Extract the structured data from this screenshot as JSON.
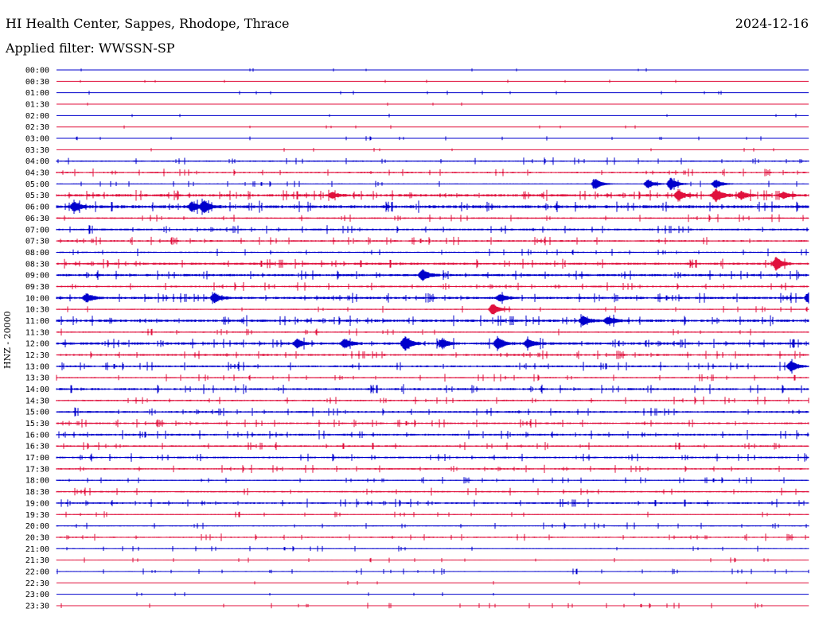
{
  "header": {
    "station": "HI Health Center, Sappes, Rhodope, Thrace",
    "date": "2024-12-16",
    "filter": "Applied filter: WWSSN-SP",
    "channel": "HNZ - 20000"
  },
  "colors": {
    "even_row": "#0000cc",
    "odd_row": "#e0103c",
    "background": "#ffffff",
    "text": "#000000"
  },
  "chart_data": {
    "type": "line",
    "title": "HI Health Center, Sappes, Rhodope, Thrace",
    "ylabel": "HNZ - 20000",
    "rows": [
      "00:00",
      "00:30",
      "01:00",
      "01:30",
      "02:00",
      "02:30",
      "03:00",
      "03:30",
      "04:00",
      "04:30",
      "05:00",
      "05:30",
      "06:00",
      "06:30",
      "07:00",
      "07:30",
      "08:00",
      "08:30",
      "09:00",
      "09:30",
      "10:00",
      "10:30",
      "11:00",
      "11:30",
      "12:00",
      "12:30",
      "13:00",
      "13:30",
      "14:00",
      "14:30",
      "15:00",
      "15:30",
      "16:00",
      "16:30",
      "17:00",
      "17:30",
      "18:00",
      "18:30",
      "19:00",
      "19:30",
      "20:00",
      "20:30",
      "21:00",
      "21:30",
      "22:00",
      "22:30",
      "23:00",
      "23:30"
    ],
    "row_minutes": 30,
    "noise_level": [
      0.0,
      0.0,
      0.1,
      0.0,
      0.0,
      0.0,
      0.2,
      0.1,
      0.7,
      0.8,
      0.5,
      1.3,
      1.5,
      0.8,
      1.0,
      0.9,
      0.7,
      1.1,
      1.2,
      0.9,
      1.2,
      0.6,
      1.3,
      0.7,
      1.3,
      1.0,
      1.0,
      0.7,
      1.1,
      0.8,
      1.0,
      0.9,
      1.0,
      0.8,
      0.9,
      0.8,
      0.6,
      0.8,
      0.9,
      0.5,
      0.6,
      0.7,
      0.4,
      0.3,
      0.5,
      0.1,
      0.1,
      0.4
    ],
    "events": [
      {
        "row": "05:00",
        "minute": 21.5,
        "amplitude": 7
      },
      {
        "row": "05:00",
        "minute": 23.6,
        "amplitude": 6
      },
      {
        "row": "05:00",
        "minute": 24.5,
        "amplitude": 8
      },
      {
        "row": "05:00",
        "minute": 26.3,
        "amplitude": 6
      },
      {
        "row": "05:30",
        "minute": 11.0,
        "amplitude": 4
      },
      {
        "row": "05:30",
        "minute": 24.8,
        "amplitude": 6
      },
      {
        "row": "05:30",
        "minute": 26.3,
        "amplitude": 9
      },
      {
        "row": "05:30",
        "minute": 27.3,
        "amplitude": 5
      },
      {
        "row": "05:30",
        "minute": 29.0,
        "amplitude": 4
      },
      {
        "row": "06:00",
        "minute": 0.7,
        "amplitude": 6
      },
      {
        "row": "06:00",
        "minute": 5.4,
        "amplitude": 6
      },
      {
        "row": "06:00",
        "minute": 5.9,
        "amplitude": 7
      },
      {
        "row": "08:30",
        "minute": 28.7,
        "amplitude": 8
      },
      {
        "row": "09:00",
        "minute": 14.6,
        "amplitude": 8
      },
      {
        "row": "10:00",
        "minute": 1.2,
        "amplitude": 6
      },
      {
        "row": "10:00",
        "minute": 6.3,
        "amplitude": 6
      },
      {
        "row": "10:00",
        "minute": 17.7,
        "amplitude": 5
      },
      {
        "row": "10:00",
        "minute": 30.0,
        "amplitude": 7
      },
      {
        "row": "10:30",
        "minute": 17.4,
        "amplitude": 8
      },
      {
        "row": "11:00",
        "minute": 21.0,
        "amplitude": 6
      },
      {
        "row": "11:00",
        "minute": 22.0,
        "amplitude": 5
      },
      {
        "row": "12:00",
        "minute": 9.6,
        "amplitude": 6
      },
      {
        "row": "12:00",
        "minute": 11.5,
        "amplitude": 6
      },
      {
        "row": "12:00",
        "minute": 13.9,
        "amplitude": 9
      },
      {
        "row": "12:00",
        "minute": 15.4,
        "amplitude": 6
      },
      {
        "row": "12:00",
        "minute": 17.6,
        "amplitude": 8
      },
      {
        "row": "12:00",
        "minute": 18.8,
        "amplitude": 6
      },
      {
        "row": "13:00",
        "minute": 29.3,
        "amplitude": 7
      }
    ]
  }
}
